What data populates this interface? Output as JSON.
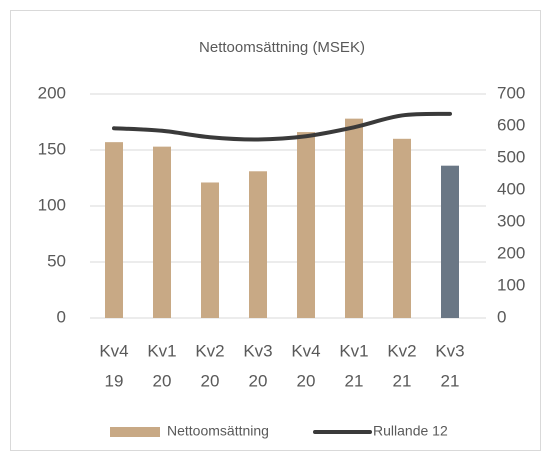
{
  "chart_data": {
    "type": "bar_line",
    "title": "Nettoomsättning (MSEK)",
    "categories": [
      [
        "Kv4",
        "19"
      ],
      [
        "Kv1",
        "20"
      ],
      [
        "Kv2",
        "20"
      ],
      [
        "Kv3",
        "20"
      ],
      [
        "Kv4",
        "20"
      ],
      [
        "Kv1",
        "21"
      ],
      [
        "Kv2",
        "21"
      ],
      [
        "Kv3",
        "21"
      ]
    ],
    "series": [
      {
        "name": "Nettoomsättning",
        "type": "bar",
        "color": "#c8a985",
        "colors": [
          "#c8a985",
          "#c8a985",
          "#c8a985",
          "#c8a985",
          "#c8a985",
          "#c8a985",
          "#c8a985",
          "#6a7785"
        ],
        "values": [
          157,
          153,
          121,
          131,
          166,
          178,
          160,
          136
        ]
      },
      {
        "name": "Rullande 12",
        "type": "line",
        "color": "#3a3a3a",
        "axis": "y2",
        "values": [
          593,
          585,
          565,
          558,
          568,
          596,
          633,
          638
        ]
      }
    ],
    "ylim": [
      0,
      200
    ],
    "yticks": [
      0,
      50,
      100,
      150,
      200
    ],
    "y2lim": [
      0,
      700
    ],
    "y2ticks": [
      0,
      100,
      200,
      300,
      400,
      500,
      600,
      700
    ],
    "grid": true,
    "legend": "bottom"
  }
}
